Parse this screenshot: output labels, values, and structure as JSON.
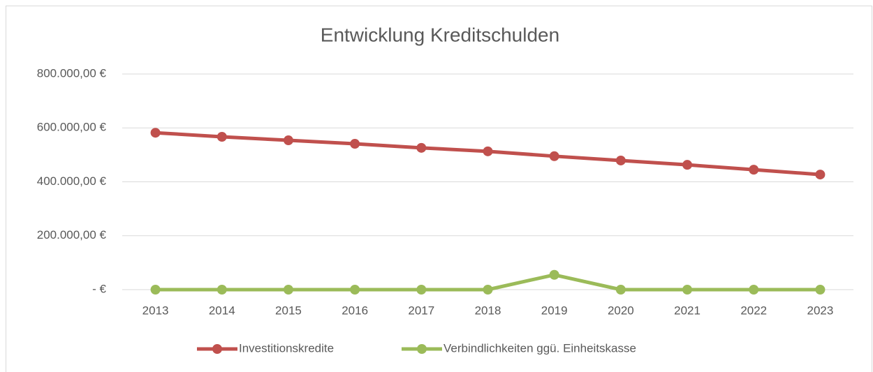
{
  "chart_data": {
    "type": "line",
    "title": "Entwicklung Kreditschulden",
    "categories": [
      "2013",
      "2014",
      "2015",
      "2016",
      "2017",
      "2018",
      "2019",
      "2020",
      "2021",
      "2022",
      "2023"
    ],
    "series": [
      {
        "name": "Investitionskredite",
        "color": "#c0504d",
        "values": [
          582000,
          567000,
          554000,
          541000,
          526000,
          513000,
          495000,
          479000,
          463000,
          445000,
          427000
        ]
      },
      {
        "name": "Verbindlichkeiten ggü. Einheitskasse",
        "color": "#9bbb59",
        "values": [
          0,
          0,
          0,
          0,
          0,
          0,
          55000,
          0,
          0,
          0,
          0
        ]
      }
    ],
    "ylim": [
      0,
      800000
    ],
    "yticks": [
      {
        "value": 0,
        "label": "-  €"
      },
      {
        "value": 200000,
        "label": "200.000,00 €"
      },
      {
        "value": 400000,
        "label": "400.000,00 €"
      },
      {
        "value": 600000,
        "label": "600.000,00 €"
      },
      {
        "value": 800000,
        "label": "800.000,00 €"
      }
    ],
    "grid": true,
    "legend": "bottom"
  }
}
